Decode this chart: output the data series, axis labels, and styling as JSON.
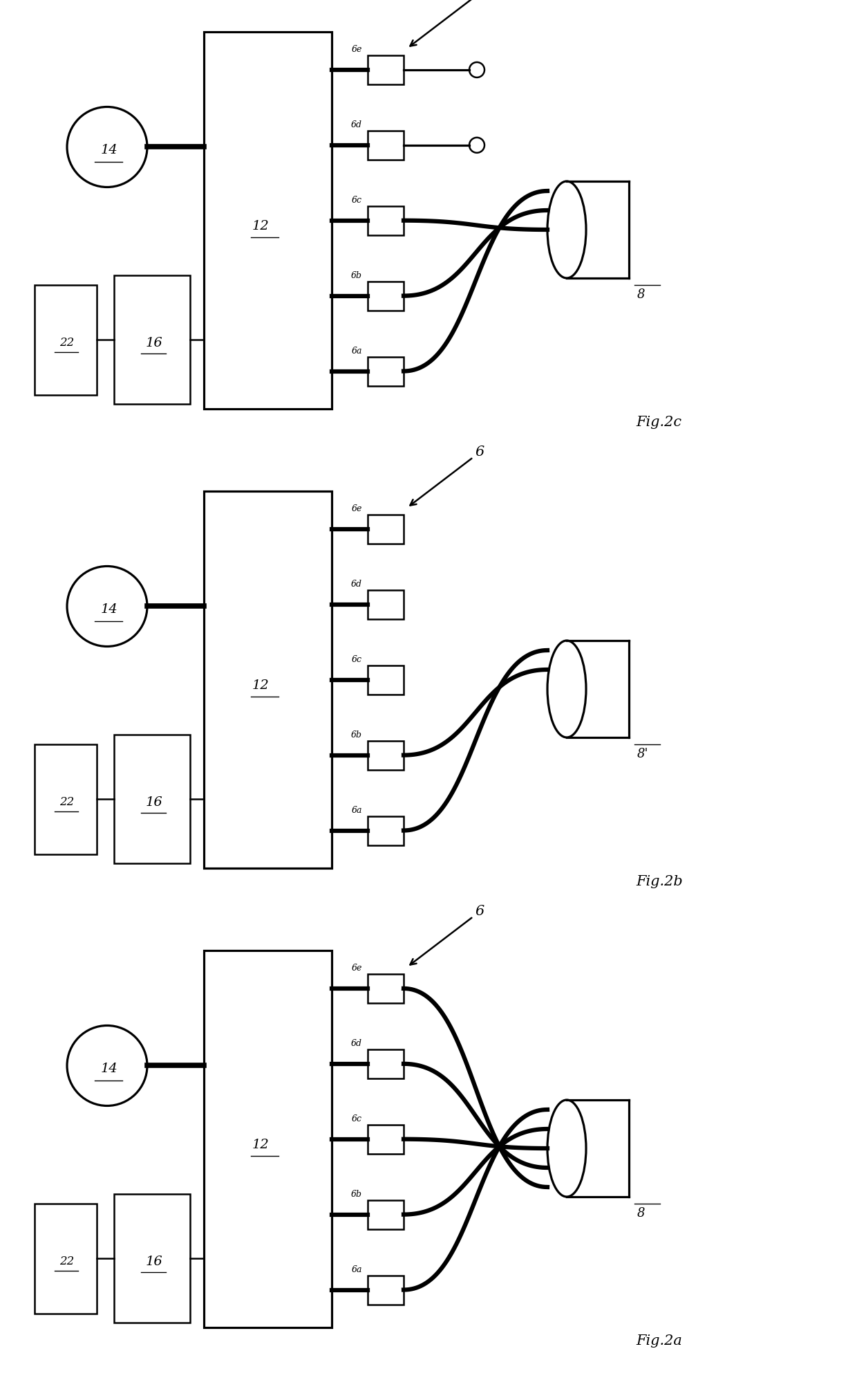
{
  "bg_color": "#ffffff",
  "line_color": "#000000",
  "lw": 1.8,
  "tlw": 4.5,
  "figures": [
    {
      "name": "Fig.2c",
      "panel": 0,
      "connector_type": "c",
      "conn_label": "8"
    },
    {
      "name": "Fig.2b",
      "panel": 1,
      "connector_type": "b",
      "conn_label": "8'"
    },
    {
      "name": "Fig.2a",
      "panel": 2,
      "connector_type": "a",
      "conn_label": "8"
    }
  ],
  "sw_labels": [
    "6a",
    "6b",
    "6c",
    "6d",
    "6e"
  ]
}
